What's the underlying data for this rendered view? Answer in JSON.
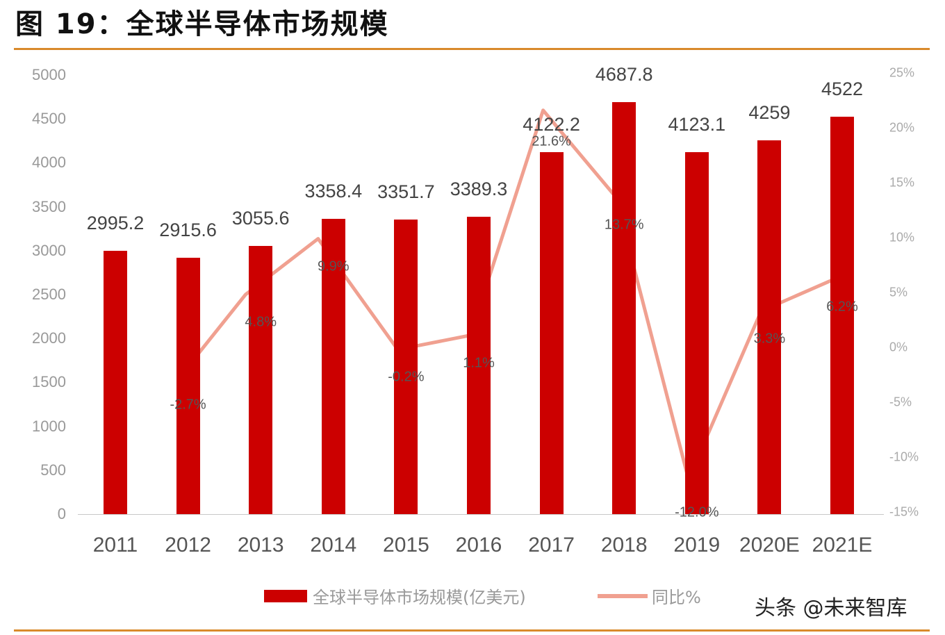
{
  "title": "图 19：全球半导体市场规模",
  "watermark": "头条 @未来智库",
  "colors": {
    "bar": "#cc0000",
    "line": "#f0a090",
    "rule": "#d98a2b"
  },
  "legend": {
    "bar": "全球半导体市场规模(亿美元)",
    "line": "同比%"
  },
  "left_axis_ticks": [
    "5000",
    "4500",
    "4000",
    "3500",
    "3000",
    "2500",
    "2000",
    "1500",
    "1000",
    "500",
    "0"
  ],
  "right_axis_ticks": [
    "25%",
    "20%",
    "15%",
    "10%",
    "5%",
    "0%",
    "-5%",
    "-10%",
    "-15%"
  ],
  "chart_data": {
    "type": "bar",
    "title": "图 19：全球半导体市场规模",
    "categories": [
      "2011",
      "2012",
      "2013",
      "2014",
      "2015",
      "2016",
      "2017",
      "2018",
      "2019",
      "2020E",
      "2021E"
    ],
    "series": [
      {
        "name": "全球半导体市场规模(亿美元)",
        "type": "bar",
        "axis": "left",
        "values": [
          2995.2,
          2915.6,
          3055.6,
          3358.4,
          3351.7,
          3389.3,
          4122.2,
          4687.8,
          4123.1,
          4259,
          4522
        ],
        "labels": [
          "2995.2",
          "2915.6",
          "3055.6",
          "3358.4",
          "3351.7",
          "3389.3",
          "4122.2",
          "4687.8",
          "4123.1",
          "4259",
          "4522"
        ]
      },
      {
        "name": "同比%",
        "type": "line",
        "axis": "right",
        "values": [
          null,
          -2.7,
          4.8,
          9.9,
          -0.2,
          1.1,
          21.6,
          13.7,
          -12.0,
          3.3,
          6.2
        ],
        "labels": [
          "",
          "-2.7%",
          "4.8%",
          "9.9%",
          "-0.2%",
          "1.1%",
          "21.6%",
          "13.7%",
          "-12.0%",
          "3.3%",
          "6.2%"
        ]
      }
    ],
    "xlabel": "",
    "ylabel": "",
    "ylim": [
      0,
      5000
    ],
    "y2lim": [
      -15,
      25
    ],
    "grid": false,
    "legend_position": "bottom"
  }
}
